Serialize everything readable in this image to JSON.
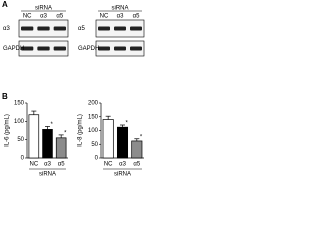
{
  "panels": {
    "a": "A",
    "b": "B"
  },
  "blots": [
    {
      "group_label": "siRNA",
      "lanes": [
        "NC",
        "α3",
        "α5"
      ],
      "rows": [
        "α3",
        "GAPDH"
      ]
    },
    {
      "group_label": "siRNA",
      "lanes": [
        "NC",
        "α3",
        "α5"
      ],
      "rows": [
        "α5",
        "GAPDH"
      ]
    }
  ],
  "chart_data": [
    {
      "type": "bar",
      "y_label": "IL-6 (pg/mL)",
      "group_label": "siRNA",
      "categories": [
        "NC",
        "α3",
        "α5"
      ],
      "values": [
        118,
        78,
        55
      ],
      "errors": [
        10,
        8,
        8
      ],
      "significance": [
        null,
        "*",
        "*"
      ],
      "colors": [
        "#ffffff",
        "#000000",
        "#8c8c8c"
      ],
      "ylim": [
        0,
        150
      ],
      "yticks": [
        0,
        50,
        100,
        150
      ]
    },
    {
      "type": "bar",
      "y_label": "IL-8 (pg/mL)",
      "group_label": "siRNA",
      "categories": [
        "NC",
        "α3",
        "α5"
      ],
      "values": [
        140,
        112,
        62
      ],
      "errors": [
        12,
        8,
        8
      ],
      "significance": [
        null,
        "*",
        "*"
      ],
      "colors": [
        "#ffffff",
        "#000000",
        "#8c8c8c"
      ],
      "ylim": [
        0,
        200
      ],
      "yticks": [
        0,
        50,
        100,
        150,
        200
      ]
    }
  ]
}
